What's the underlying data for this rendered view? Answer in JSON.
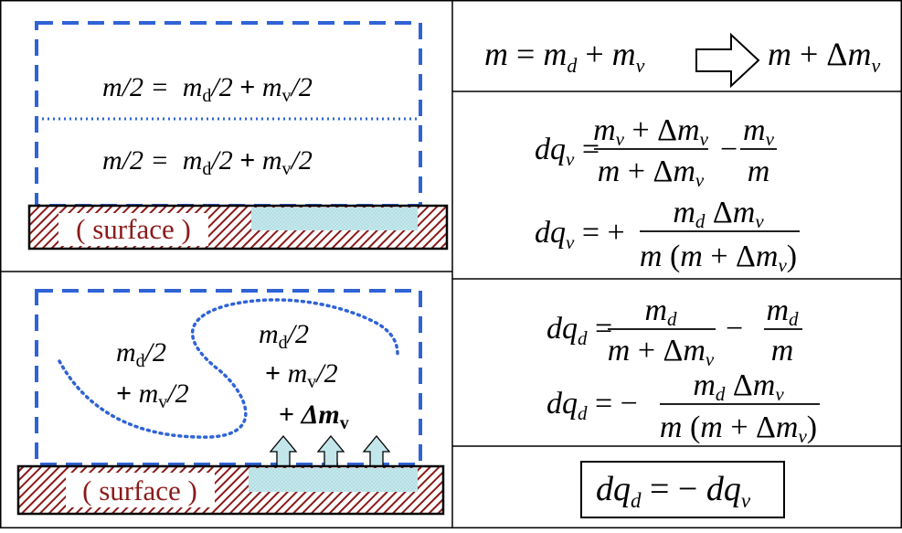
{
  "left_top": {
    "line1": "m/2 =  m_d /2 + m_v /2",
    "line2": "m/2 =  m_d /2 + m_v /2",
    "surface_label": "( surface )"
  },
  "left_bottom": {
    "left_text_l1": "m_d /2",
    "left_text_l2": "+ m_v /2",
    "right_text_l1": "m_d /2",
    "right_text_l2": "+ m_v /2",
    "right_text_l3": "+ Δm_v",
    "surface_label": "( surface )"
  },
  "right": {
    "eq_mass": "m = m_d + m_v  ⇨  m + Δm_v",
    "eq_dqv_1": "dq_v = (m_v + Δm_v)/(m + Δm_v) − m_v/m",
    "eq_dqv_2": "dq_v = + m_d Δm_v / (m (m + Δm_v))",
    "eq_dqd_1": "dq_d = m_d/(m + Δm_v) − m_d/m",
    "eq_dqd_2": "dq_d = − m_d Δm_v / (m (m + Δm_v))",
    "eq_final": "dq_d = − dq_v"
  },
  "colors": {
    "dashed_box": "#2f63d6",
    "surface_hatch": "#8b1a1a",
    "water": "#b8e2e6",
    "arrow_fill": "#c3e6ea"
  }
}
